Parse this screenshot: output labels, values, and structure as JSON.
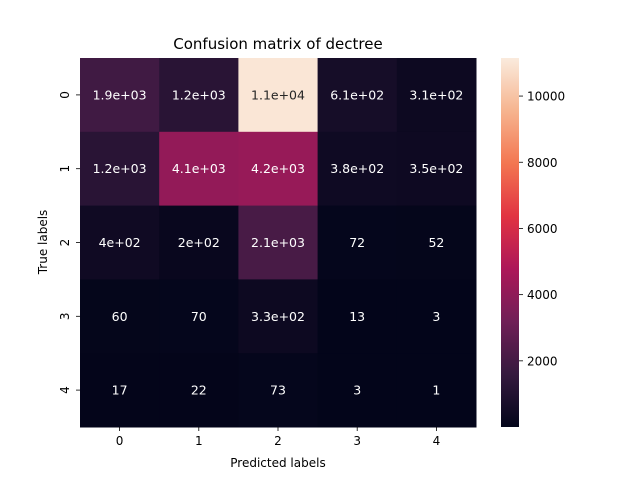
{
  "chart_data": {
    "type": "heatmap",
    "title": "Confusion matrix of dectree",
    "xlabel": "Predicted labels",
    "ylabel": "True labels",
    "x_categories": [
      "0",
      "1",
      "2",
      "3",
      "4"
    ],
    "y_categories": [
      "0",
      "1",
      "2",
      "3",
      "4"
    ],
    "values": [
      [
        1900,
        1200,
        11000,
        610,
        310
      ],
      [
        1200,
        4100,
        4200,
        380,
        350
      ],
      [
        400,
        200,
        2100,
        72,
        52
      ],
      [
        60,
        70,
        330,
        13,
        3
      ],
      [
        17,
        22,
        73,
        3,
        1
      ]
    ],
    "annotations": [
      [
        "1.9e+03",
        "1.2e+03",
        "1.1e+04",
        "6.1e+02",
        "3.1e+02"
      ],
      [
        "1.2e+03",
        "4.1e+03",
        "4.2e+03",
        "3.8e+02",
        "3.5e+02"
      ],
      [
        "4e+02",
        "2e+02",
        "2.1e+03",
        "72",
        "52"
      ],
      [
        "60",
        "70",
        "3.3e+02",
        "13",
        "3"
      ],
      [
        "17",
        "22",
        "73",
        "3",
        "1"
      ]
    ],
    "colorbar": {
      "min": 1,
      "max": 11150,
      "ticks": [
        2000,
        4000,
        6000,
        8000,
        10000
      ],
      "tick_labels": [
        "2000",
        "4000",
        "6000",
        "8000",
        "10000"
      ]
    },
    "colormap": "rocket",
    "colormap_stops": [
      "#03051a",
      "#35193e",
      "#701f57",
      "#ad1759",
      "#e13342",
      "#f37651",
      "#f6b48f",
      "#faebdd"
    ]
  }
}
